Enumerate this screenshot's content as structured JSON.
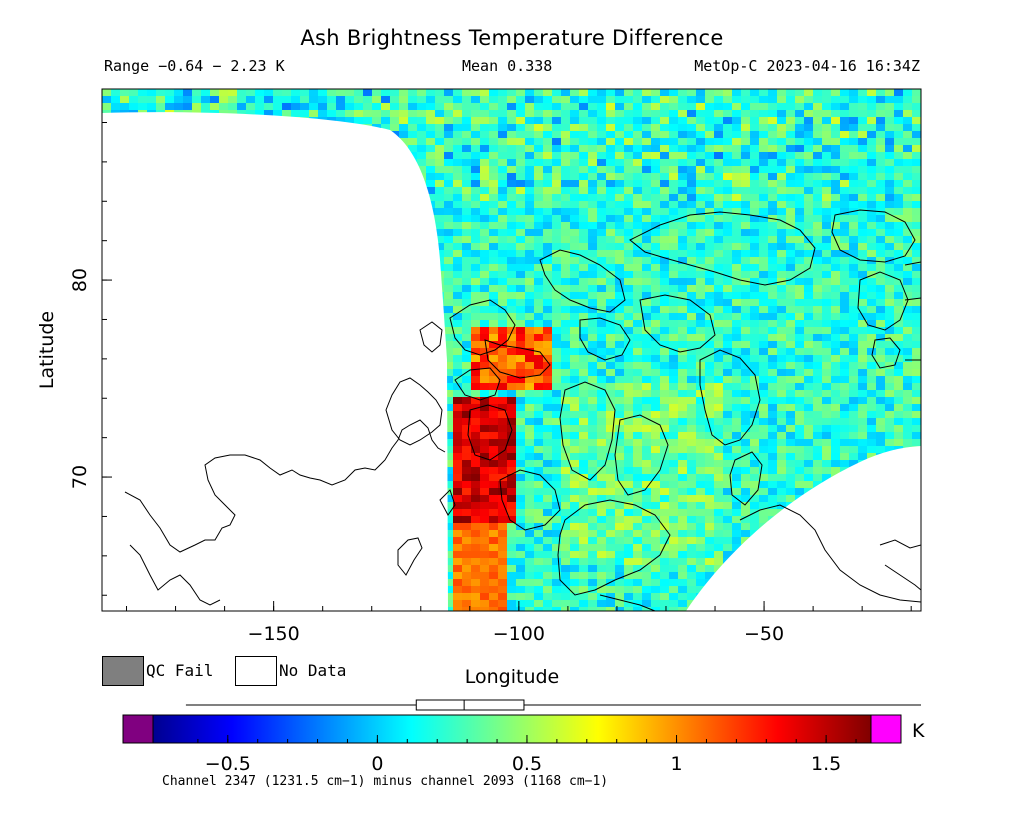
{
  "title": "Ash Brightness Temperature Difference",
  "stats": {
    "range": "Range −0.64 − 2.23 K",
    "mean": "Mean 0.338",
    "satellite_time": "MetOp-C 2023-04-16 16:34Z"
  },
  "legend": {
    "qc_fail": "QC Fail",
    "no_data": "No Data",
    "qc_fail_color": "#7f7f7f",
    "no_data_color": "#ffffff"
  },
  "footnote": "Channel 2347 (1231.5 cm−1) minus channel 2093 (1168 cm−1)",
  "chart_data": {
    "type": "heatmap",
    "xlabel": "Longitude",
    "ylabel": "Latitude",
    "xlim": [
      -185,
      -18
    ],
    "ylim": [
      63.2,
      89.7
    ],
    "x_ticks": [
      {
        "value": -150,
        "label": "−150"
      },
      {
        "value": -100,
        "label": "−100"
      },
      {
        "value": -50,
        "label": "−50"
      }
    ],
    "y_ticks": [
      {
        "value": 70,
        "label": "70"
      },
      {
        "value": 80,
        "label": "80"
      }
    ],
    "colorbar": {
      "unit": "K",
      "range": [
        -0.75,
        1.65
      ],
      "under_color": "#800080",
      "over_color": "#ff00ff",
      "ticks": [
        {
          "value": -0.5,
          "label": "−0.5"
        },
        {
          "value": 0,
          "label": "0"
        },
        {
          "value": 0.5,
          "label": "0.5"
        },
        {
          "value": 1,
          "label": "1"
        },
        {
          "value": 1.5,
          "label": "1.5"
        }
      ],
      "boxplot": {
        "min": -0.64,
        "q1": 0.13,
        "median": 0.29,
        "q3": 0.49,
        "max": 2.23
      }
    }
  }
}
